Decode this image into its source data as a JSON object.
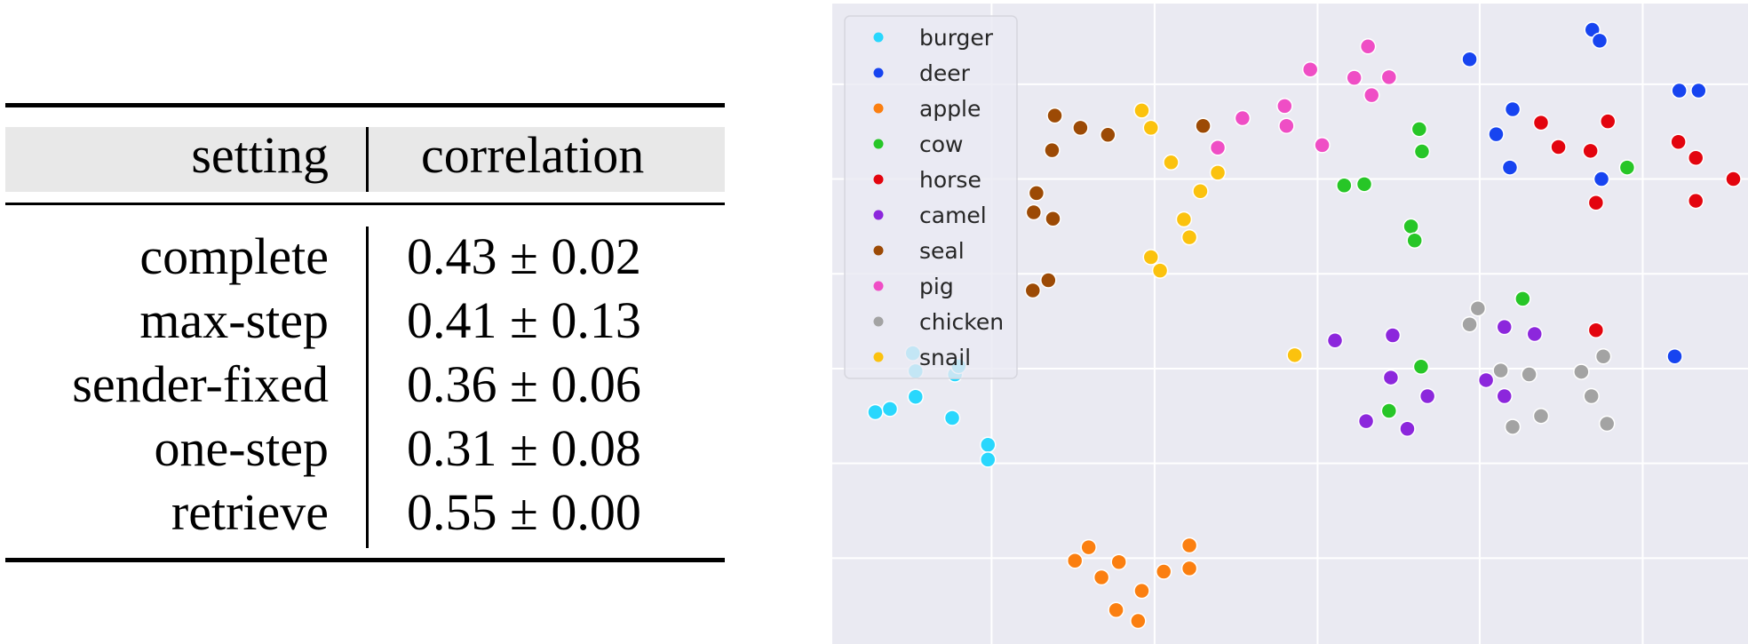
{
  "table": {
    "headers": [
      "setting",
      "correlation"
    ],
    "rows": [
      {
        "setting": "complete",
        "correlation": "0.43 ± 0.02"
      },
      {
        "setting": "max-step",
        "correlation": "0.41 ± 0.13"
      },
      {
        "setting": "sender-fixed",
        "correlation": "0.36 ± 0.06"
      },
      {
        "setting": "one-step",
        "correlation": "0.31 ± 0.08"
      },
      {
        "setting": "retrieve",
        "correlation": "0.55 ± 0.00"
      }
    ]
  },
  "chart_data": {
    "type": "scatter",
    "title": "",
    "xlabel": "",
    "ylabel": "",
    "xlim": [
      0,
      100
    ],
    "ylim": [
      0,
      100
    ],
    "grid": true,
    "legend_position": "top-left",
    "background_color": "#eaeaf2",
    "series": [
      {
        "name": "burger",
        "color": "#29d7fd",
        "points": [
          [
            8.8,
            45.4
          ],
          [
            9.1,
            42.6
          ],
          [
            9.1,
            38.6
          ],
          [
            4.7,
            36.2
          ],
          [
            6.3,
            36.7
          ],
          [
            13.4,
            42.1
          ],
          [
            13.8,
            43.4
          ],
          [
            13.1,
            35.3
          ],
          [
            17.0,
            31.1
          ],
          [
            17.0,
            28.8
          ]
        ]
      },
      {
        "name": "deer",
        "color": "#1744f0",
        "points": [
          [
            69.6,
            91.3
          ],
          [
            83.0,
            95.9
          ],
          [
            83.8,
            94.2
          ],
          [
            92.5,
            86.4
          ],
          [
            94.6,
            86.4
          ],
          [
            74.3,
            83.5
          ],
          [
            72.5,
            79.6
          ],
          [
            74.0,
            74.4
          ],
          [
            84.0,
            72.6
          ],
          [
            92.0,
            44.9
          ]
        ]
      },
      {
        "name": "apple",
        "color": "#fb7f10",
        "points": [
          [
            26.5,
            13.0
          ],
          [
            28.0,
            15.1
          ],
          [
            29.4,
            10.4
          ],
          [
            31.3,
            12.8
          ],
          [
            31.0,
            5.3
          ],
          [
            33.8,
            8.3
          ],
          [
            33.4,
            3.6
          ],
          [
            36.2,
            11.3
          ],
          [
            39.0,
            15.4
          ],
          [
            39.0,
            11.8
          ]
        ]
      },
      {
        "name": "cow",
        "color": "#27c627",
        "points": [
          [
            64.1,
            80.4
          ],
          [
            64.4,
            76.9
          ],
          [
            55.9,
            71.6
          ],
          [
            58.1,
            71.8
          ],
          [
            63.2,
            65.2
          ],
          [
            63.6,
            63.0
          ],
          [
            75.4,
            53.9
          ],
          [
            64.3,
            43.3
          ],
          [
            60.8,
            36.4
          ],
          [
            86.8,
            74.4
          ]
        ]
      },
      {
        "name": "horse",
        "color": "#e3040e",
        "points": [
          [
            77.4,
            81.4
          ],
          [
            84.7,
            81.6
          ],
          [
            79.3,
            77.6
          ],
          [
            82.8,
            77.0
          ],
          [
            92.4,
            78.4
          ],
          [
            94.3,
            75.9
          ],
          [
            98.4,
            72.6
          ],
          [
            83.4,
            68.9
          ],
          [
            94.3,
            69.2
          ],
          [
            83.4,
            49.0
          ]
        ]
      },
      {
        "name": "camel",
        "color": "#8c27dc",
        "points": [
          [
            54.9,
            47.4
          ],
          [
            61.2,
            48.2
          ],
          [
            73.4,
            49.5
          ],
          [
            76.7,
            48.4
          ],
          [
            61.0,
            41.6
          ],
          [
            71.4,
            41.2
          ],
          [
            65.0,
            38.7
          ],
          [
            73.4,
            38.7
          ],
          [
            58.3,
            34.8
          ],
          [
            62.8,
            33.6
          ]
        ]
      },
      {
        "name": "seal",
        "color": "#9c4a05",
        "points": [
          [
            24.3,
            82.5
          ],
          [
            27.1,
            80.6
          ],
          [
            30.1,
            79.5
          ],
          [
            24.0,
            77.1
          ],
          [
            40.5,
            80.9
          ],
          [
            22.3,
            70.4
          ],
          [
            22.0,
            67.4
          ],
          [
            24.1,
            66.4
          ],
          [
            23.6,
            56.8
          ],
          [
            21.9,
            55.2
          ]
        ]
      },
      {
        "name": "pig",
        "color": "#ef4ec5",
        "points": [
          [
            58.5,
            93.3
          ],
          [
            52.2,
            89.7
          ],
          [
            57.0,
            88.4
          ],
          [
            60.8,
            88.5
          ],
          [
            58.9,
            85.7
          ],
          [
            44.8,
            82.1
          ],
          [
            49.4,
            84.0
          ],
          [
            49.6,
            80.9
          ],
          [
            42.1,
            77.5
          ],
          [
            53.5,
            77.9
          ]
        ]
      },
      {
        "name": "chicken",
        "color": "#a3a3a3",
        "points": [
          [
            70.5,
            52.4
          ],
          [
            69.6,
            49.9
          ],
          [
            73.0,
            42.7
          ],
          [
            76.1,
            42.1
          ],
          [
            81.8,
            42.5
          ],
          [
            84.2,
            44.9
          ],
          [
            82.9,
            38.7
          ],
          [
            77.4,
            35.6
          ],
          [
            74.3,
            33.9
          ],
          [
            84.6,
            34.4
          ]
        ]
      },
      {
        "name": "snail",
        "color": "#fbc20e",
        "points": [
          [
            33.8,
            83.3
          ],
          [
            34.8,
            80.6
          ],
          [
            37.0,
            75.2
          ],
          [
            42.1,
            73.6
          ],
          [
            40.2,
            70.7
          ],
          [
            38.4,
            66.3
          ],
          [
            39.0,
            63.5
          ],
          [
            34.8,
            60.4
          ],
          [
            35.8,
            58.3
          ],
          [
            50.5,
            45.1
          ]
        ]
      }
    ],
    "legend": [
      "burger",
      "deer",
      "apple",
      "cow",
      "horse",
      "camel",
      "seal",
      "pig",
      "chicken",
      "snail"
    ]
  }
}
